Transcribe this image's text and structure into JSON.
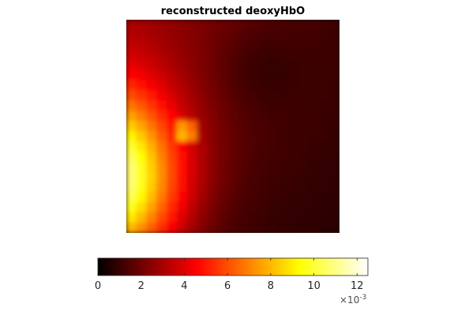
{
  "chart_data": {
    "type": "heatmap",
    "title": "reconstructed deoxyHbO",
    "colormap": "hot",
    "axes_visible": false,
    "grid": false,
    "value_range": [
      0,
      0.0125
    ],
    "colorbar": {
      "location": "bottom",
      "ticks": [
        0,
        2,
        4,
        6,
        8,
        10,
        12
      ],
      "tick_labels": [
        "0",
        "2",
        "4",
        "6",
        "8",
        "10",
        "12"
      ],
      "multiplier_base": "×10",
      "multiplier_exponent": "-3"
    },
    "colormap_stops": [
      {
        "value": 0.0,
        "color": "#000000"
      },
      {
        "value": 0.365,
        "color": "#ff0000"
      },
      {
        "value": 0.746,
        "color": "#ffff00"
      },
      {
        "value": 1.0,
        "color": "#ffffff"
      }
    ],
    "grid_rows": 21,
    "grid_cols": 21,
    "field": {
      "background": 0.0006,
      "gradient_peak": 0.0022,
      "gradient_center": [
        -0.2,
        -0.1
      ],
      "gradient_spread": 0.7,
      "features": [
        {
          "kind": "hot-spot",
          "x": -0.1,
          "y": 0.75,
          "peak": 0.0105,
          "spread_x": 0.24,
          "spread_y": 0.29
        },
        {
          "kind": "square-patch",
          "x": 0.28,
          "y": 0.53,
          "peak": 0.0045,
          "half_width": 0.06
        },
        {
          "kind": "dark-spot",
          "x": 0.62,
          "y": 0.23,
          "depth": 0.0006,
          "spread": 0.15
        }
      ]
    }
  }
}
